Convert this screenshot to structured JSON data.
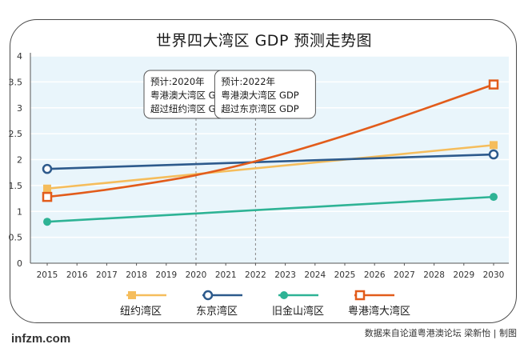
{
  "chart_data": {
    "type": "line",
    "title": "世界四大湾区 GDP 预测走势图",
    "x": [
      2015,
      2030
    ],
    "x_ticks": [
      "2015",
      "2016",
      "2017",
      "2018",
      "2019",
      "2020",
      "2021",
      "2022",
      "2023",
      "2024",
      "2025",
      "2026",
      "2027",
      "2028",
      "2029",
      "2030"
    ],
    "y_ticks": [
      "0",
      "0.5",
      "1",
      "1.5",
      "2",
      "2.5",
      "3",
      "3.5",
      "4"
    ],
    "ylim": [
      0,
      4
    ],
    "xlim": [
      2015,
      2030
    ],
    "grid": "horizontal",
    "legend_position": "bottom",
    "series": [
      {
        "name": "纽约湾区",
        "color": "#f5bd5c",
        "marker": "square-filled",
        "points": [
          [
            2015,
            1.44
          ],
          [
            2030,
            2.28
          ]
        ],
        "curve": "straight"
      },
      {
        "name": "东京湾区",
        "color": "#2d5a8c",
        "marker": "circle-open",
        "points": [
          [
            2015,
            1.82
          ],
          [
            2030,
            2.1
          ]
        ],
        "curve": "straight"
      },
      {
        "name": "旧金山湾区",
        "color": "#2eb395",
        "marker": "circle-filled",
        "points": [
          [
            2015,
            0.8
          ],
          [
            2030,
            1.28
          ]
        ],
        "curve": "straight"
      },
      {
        "name": "粤港湾大湾区",
        "color": "#e25c1b",
        "marker": "square-open",
        "points": [
          [
            2015,
            1.28
          ],
          [
            2017,
            1.42
          ],
          [
            2020,
            1.7
          ],
          [
            2023,
            2.12
          ],
          [
            2026,
            2.65
          ],
          [
            2030,
            3.45
          ]
        ],
        "curve": "smooth"
      }
    ],
    "annotations": [
      {
        "at_x": 2020,
        "lines": [
          "预计:2020年",
          "粤港澳大湾区 GDP",
          "超过纽约湾区 GDP"
        ]
      },
      {
        "at_x": 2022,
        "lines": [
          "预计:2022年",
          "粤港澳大湾区 GDP",
          "超过东京湾区 GDP"
        ]
      }
    ]
  },
  "footer": {
    "brand": "infzm.com",
    "source": "数据来自论道粤港澳论坛 梁新怡 | 制图"
  }
}
